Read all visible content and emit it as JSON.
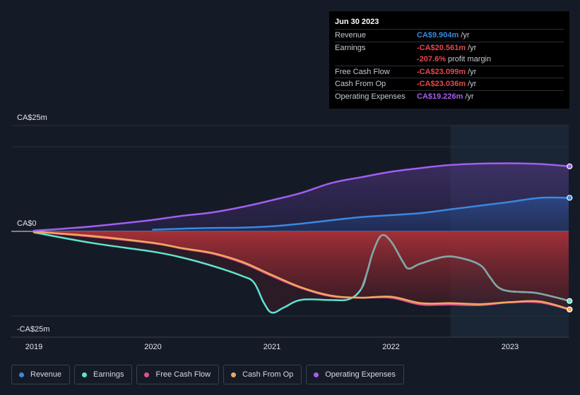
{
  "chart_data": {
    "type": "area",
    "x_axis_ticks": [
      "2019",
      "2020",
      "2021",
      "2022",
      "2023"
    ],
    "y_axis_labels": {
      "top": "CA$25m",
      "zero": "CA$0",
      "bottom": "-CA$25m"
    },
    "ylim": [
      -25,
      25
    ],
    "xlim": [
      2019.0,
      2023.5
    ],
    "forecast_highlight_start": 2022.5,
    "series": [
      {
        "name": "Operating Expenses",
        "key": "opex",
        "color": "#a45df0",
        "points": [
          [
            2019.0,
            0.2
          ],
          [
            2019.25,
            0.8
          ],
          [
            2019.5,
            1.5
          ],
          [
            2019.75,
            2.4
          ],
          [
            2020.0,
            3.4
          ],
          [
            2020.25,
            4.6
          ],
          [
            2020.5,
            5.6
          ],
          [
            2020.75,
            7.2
          ],
          [
            2021.0,
            9.2
          ],
          [
            2021.25,
            11.4
          ],
          [
            2021.5,
            14.3
          ],
          [
            2021.75,
            16.0
          ],
          [
            2022.0,
            17.6
          ],
          [
            2022.25,
            18.7
          ],
          [
            2022.5,
            19.6
          ],
          [
            2022.75,
            20.0
          ],
          [
            2023.0,
            20.1
          ],
          [
            2023.25,
            19.9
          ],
          [
            2023.5,
            19.2
          ]
        ]
      },
      {
        "name": "Revenue",
        "key": "revenue",
        "color": "#3b88e0",
        "points": [
          [
            2020.0,
            0.5
          ],
          [
            2020.25,
            0.8
          ],
          [
            2020.5,
            1.0
          ],
          [
            2020.75,
            1.1
          ],
          [
            2021.0,
            1.5
          ],
          [
            2021.25,
            2.3
          ],
          [
            2021.5,
            3.3
          ],
          [
            2021.75,
            4.2
          ],
          [
            2022.0,
            4.8
          ],
          [
            2022.25,
            5.4
          ],
          [
            2022.5,
            6.5
          ],
          [
            2022.75,
            7.6
          ],
          [
            2023.0,
            8.7
          ],
          [
            2023.25,
            9.9
          ],
          [
            2023.5,
            9.904
          ]
        ]
      },
      {
        "name": "Free Cash Flow",
        "key": "fcf",
        "color": "#e0508a",
        "points": [
          [
            2019.0,
            -0.1
          ],
          [
            2019.5,
            -1.6
          ],
          [
            2020.0,
            -3.5
          ],
          [
            2020.25,
            -5.1
          ],
          [
            2020.5,
            -6.6
          ],
          [
            2020.75,
            -9.3
          ],
          [
            2021.0,
            -13.2
          ],
          [
            2021.25,
            -16.8
          ],
          [
            2021.5,
            -19.2
          ],
          [
            2021.75,
            -19.6
          ],
          [
            2022.0,
            -19.6
          ],
          [
            2022.25,
            -21.6
          ],
          [
            2022.5,
            -21.6
          ],
          [
            2022.75,
            -21.8
          ],
          [
            2023.0,
            -21.0
          ],
          [
            2023.25,
            -21.0
          ],
          [
            2023.5,
            -23.099
          ]
        ]
      },
      {
        "name": "Cash From Op",
        "key": "cfo",
        "color": "#f0a860",
        "points": [
          [
            2019.0,
            -0.1
          ],
          [
            2019.5,
            -1.4
          ],
          [
            2020.0,
            -3.4
          ],
          [
            2020.25,
            -5.0
          ],
          [
            2020.5,
            -6.4
          ],
          [
            2020.75,
            -9.0
          ],
          [
            2021.0,
            -12.9
          ],
          [
            2021.25,
            -16.6
          ],
          [
            2021.5,
            -19.0
          ],
          [
            2021.75,
            -19.6
          ],
          [
            2022.0,
            -19.3
          ],
          [
            2022.25,
            -21.2
          ],
          [
            2022.5,
            -21.2
          ],
          [
            2022.75,
            -21.5
          ],
          [
            2022.95,
            -21.0
          ],
          [
            2023.0,
            -20.9
          ],
          [
            2023.25,
            -20.7
          ],
          [
            2023.5,
            -23.036
          ]
        ]
      },
      {
        "name": "Earnings",
        "key": "earnings",
        "color": "#5fe3cf",
        "points": [
          [
            2019.0,
            -0.3
          ],
          [
            2019.5,
            -3.5
          ],
          [
            2020.0,
            -6.0
          ],
          [
            2020.25,
            -7.8
          ],
          [
            2020.5,
            -10.2
          ],
          [
            2020.75,
            -13.2
          ],
          [
            2020.85,
            -15.2
          ],
          [
            2020.93,
            -21.0
          ],
          [
            2021.0,
            -24.0
          ],
          [
            2021.1,
            -22.5
          ],
          [
            2021.25,
            -20.2
          ],
          [
            2021.5,
            -20.3
          ],
          [
            2021.65,
            -20.0
          ],
          [
            2021.75,
            -17.0
          ],
          [
            2021.8,
            -12.0
          ],
          [
            2021.85,
            -6.0
          ],
          [
            2021.92,
            -1.2
          ],
          [
            2022.0,
            -3.0
          ],
          [
            2022.1,
            -9.0
          ],
          [
            2022.15,
            -11.0
          ],
          [
            2022.25,
            -9.5
          ],
          [
            2022.45,
            -7.5
          ],
          [
            2022.6,
            -8.0
          ],
          [
            2022.75,
            -10.0
          ],
          [
            2022.83,
            -13.5
          ],
          [
            2022.9,
            -16.5
          ],
          [
            2023.0,
            -17.7
          ],
          [
            2023.2,
            -18.1
          ],
          [
            2023.35,
            -19.2
          ],
          [
            2023.5,
            -20.561
          ]
        ]
      }
    ],
    "tooltip": {
      "date": "Jun 30 2023",
      "unit": "/yr",
      "rows": [
        {
          "label": "Revenue",
          "value": "CA$9.904m",
          "color": "#3b88e0",
          "unit": "/yr"
        },
        {
          "label": "Earnings",
          "value": "-CA$20.561m",
          "color": "#e5484d",
          "unit": "/yr"
        },
        {
          "label": "",
          "value": "-207.6%",
          "color": "#e5484d",
          "unit": "profit margin"
        },
        {
          "label": "Free Cash Flow",
          "value": "-CA$23.099m",
          "color": "#e5484d",
          "unit": "/yr"
        },
        {
          "label": "Cash From Op",
          "value": "-CA$23.036m",
          "color": "#e5484d",
          "unit": "/yr"
        },
        {
          "label": "Operating Expenses",
          "value": "CA$19.226m",
          "color": "#a45df0",
          "unit": "/yr"
        }
      ]
    },
    "legend": [
      {
        "label": "Revenue",
        "color": "#3b88e0"
      },
      {
        "label": "Earnings",
        "color": "#5fe3cf"
      },
      {
        "label": "Free Cash Flow",
        "color": "#e0508a"
      },
      {
        "label": "Cash From Op",
        "color": "#f0a860"
      },
      {
        "label": "Operating Expenses",
        "color": "#a45df0"
      }
    ]
  }
}
